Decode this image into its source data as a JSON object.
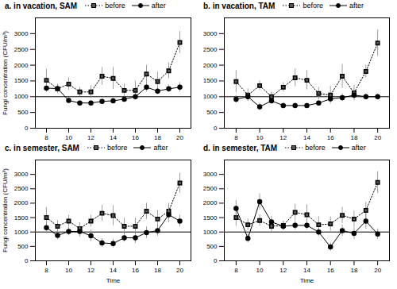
{
  "chart_data": [
    {
      "type": "line",
      "title": "a. in vacation, SAM",
      "x": [
        8,
        9,
        10,
        11,
        12,
        13,
        14,
        15,
        16,
        17,
        18,
        19,
        20
      ],
      "series": [
        {
          "name": "before",
          "color": "#000000",
          "marker": "square",
          "line_style": "dotted",
          "values": [
            1520,
            1250,
            1400,
            1150,
            1150,
            1650,
            1580,
            1200,
            1200,
            1720,
            1480,
            1820,
            2720
          ],
          "errors": [
            350,
            150,
            200,
            150,
            200,
            280,
            350,
            200,
            300,
            280,
            300,
            250,
            350
          ]
        },
        {
          "name": "after",
          "color": "#000000",
          "marker": "circle",
          "line_style": "solid",
          "values": [
            1270,
            1260,
            880,
            800,
            800,
            850,
            870,
            920,
            1000,
            1300,
            1180,
            1250,
            1300
          ],
          "errors": [
            130,
            100,
            100,
            80,
            80,
            80,
            80,
            80,
            100,
            150,
            120,
            120,
            150
          ]
        }
      ],
      "reference_line": 1000,
      "ylabel": "Fungi concentration (CFU/m³)",
      "xlim": [
        7,
        21
      ],
      "xticks": [
        8,
        10,
        12,
        14,
        16,
        18,
        20
      ],
      "ylim": [
        0,
        3500
      ],
      "yticks": [
        0,
        500,
        1000,
        1500,
        2000,
        2500,
        3000
      ],
      "legend": "upper left"
    },
    {
      "type": "line",
      "title": "b. in vacation, TAM",
      "x": [
        8,
        9,
        10,
        11,
        12,
        13,
        14,
        15,
        16,
        17,
        18,
        19,
        20
      ],
      "series": [
        {
          "name": "before",
          "color": "#000000",
          "marker": "square",
          "line_style": "dotted",
          "values": [
            1480,
            1050,
            1350,
            1000,
            1300,
            1600,
            1520,
            1100,
            1050,
            1650,
            1120,
            1800,
            2700
          ],
          "errors": [
            350,
            200,
            150,
            150,
            150,
            280,
            300,
            200,
            280,
            380,
            250,
            200,
            420
          ]
        },
        {
          "name": "after",
          "color": "#000000",
          "marker": "circle",
          "line_style": "solid",
          "values": [
            920,
            1000,
            680,
            870,
            720,
            720,
            720,
            800,
            930,
            970,
            1050,
            1000,
            1000
          ],
          "errors": [
            120,
            100,
            120,
            100,
            80,
            80,
            80,
            80,
            80,
            120,
            120,
            80,
            80
          ]
        }
      ],
      "reference_line": 1000,
      "xlim": [
        7,
        21
      ],
      "xticks": [
        8,
        10,
        12,
        14,
        16,
        18,
        20
      ],
      "ylim": [
        0,
        3500
      ],
      "yticks": [
        0,
        500,
        1000,
        1500,
        2000,
        2500,
        3000
      ],
      "legend": "upper left"
    },
    {
      "type": "line",
      "title": "c. in semester, SAM",
      "x": [
        8,
        9,
        10,
        11,
        12,
        13,
        14,
        15,
        16,
        17,
        18,
        19,
        20
      ],
      "series": [
        {
          "name": "before",
          "color": "#000000",
          "marker": "square",
          "line_style": "dotted",
          "values": [
            1500,
            1200,
            1380,
            1120,
            1380,
            1650,
            1570,
            1200,
            1200,
            1720,
            1450,
            1720,
            2700
          ],
          "errors": [
            350,
            200,
            200,
            200,
            200,
            280,
            350,
            280,
            280,
            280,
            300,
            280,
            350
          ]
        },
        {
          "name": "after",
          "color": "#000000",
          "marker": "circle",
          "line_style": "solid",
          "values": [
            1150,
            880,
            1020,
            1020,
            870,
            620,
            600,
            800,
            800,
            980,
            1050,
            1600,
            1380
          ],
          "errors": [
            200,
            150,
            150,
            200,
            200,
            150,
            150,
            150,
            200,
            200,
            200,
            280,
            200
          ]
        }
      ],
      "reference_line": 1000,
      "xlabel": "Time",
      "ylabel": "Fungi concentration (CFU/m³)",
      "xlim": [
        7,
        21
      ],
      "xticks": [
        8,
        10,
        12,
        14,
        16,
        18,
        20
      ],
      "ylim": [
        0,
        3500
      ],
      "yticks": [
        0,
        500,
        1000,
        1500,
        2000,
        2500,
        3000
      ],
      "legend": "upper left"
    },
    {
      "type": "line",
      "title": "d. in semester, TAM",
      "x": [
        8,
        9,
        10,
        11,
        12,
        13,
        14,
        15,
        16,
        17,
        18,
        19,
        20
      ],
      "series": [
        {
          "name": "before",
          "color": "#000000",
          "marker": "square",
          "line_style": "dotted",
          "values": [
            1500,
            1250,
            1400,
            1200,
            1230,
            1680,
            1600,
            1250,
            1280,
            1580,
            1450,
            1750,
            2720
          ],
          "errors": [
            300,
            200,
            200,
            200,
            150,
            280,
            350,
            280,
            250,
            280,
            280,
            280,
            380
          ]
        },
        {
          "name": "after",
          "color": "#000000",
          "marker": "circle",
          "line_style": "solid",
          "values": [
            1820,
            780,
            2050,
            1350,
            1200,
            1230,
            1230,
            1000,
            480,
            1050,
            950,
            1380,
            930
          ],
          "errors": [
            280,
            150,
            280,
            200,
            150,
            150,
            150,
            150,
            150,
            200,
            200,
            280,
            180
          ]
        }
      ],
      "reference_line": 1000,
      "xlabel": "Time",
      "xlim": [
        7,
        21
      ],
      "xticks": [
        8,
        10,
        12,
        14,
        16,
        18,
        20
      ],
      "ylim": [
        0,
        3500
      ],
      "yticks": [
        0,
        500,
        1000,
        1500,
        2000,
        2500,
        3000
      ],
      "legend": "upper left"
    }
  ]
}
